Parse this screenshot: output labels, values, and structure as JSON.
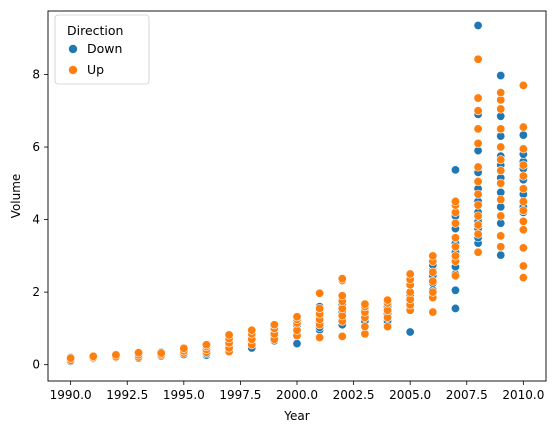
{
  "chart_data": {
    "type": "scatter",
    "title": "",
    "xlabel": "Year",
    "ylabel": "Volume",
    "xlim": [
      1989.0,
      2011.0
    ],
    "ylim": [
      -0.45,
      9.75
    ],
    "x_ticks": [
      1990.0,
      1992.5,
      1995.0,
      1997.5,
      2000.0,
      2002.5,
      2005.0,
      2007.5,
      2010.0
    ],
    "x_tick_labels": [
      "1990.0",
      "1992.5",
      "1995.0",
      "1997.5",
      "2000.0",
      "2002.5",
      "2005.0",
      "2007.5",
      "2010.0"
    ],
    "y_ticks": [
      0,
      2,
      4,
      6,
      8
    ],
    "y_tick_labels": [
      "0",
      "2",
      "4",
      "6",
      "8"
    ],
    "grid": false,
    "legend": {
      "title": "Direction",
      "placement": "top-left",
      "entries": [
        "Down",
        "Up"
      ]
    },
    "series": [
      {
        "name": "Down",
        "color": "#1f77b4",
        "points": [
          [
            1990,
            0.09
          ],
          [
            1990,
            0.14
          ],
          [
            1990,
            0.2
          ],
          [
            1991,
            0.17
          ],
          [
            1991,
            0.2
          ],
          [
            1992,
            0.2
          ],
          [
            1992,
            0.24
          ],
          [
            1992,
            0.28
          ],
          [
            1993,
            0.18
          ],
          [
            1993,
            0.24
          ],
          [
            1993,
            0.3
          ],
          [
            1994,
            0.24
          ],
          [
            1994,
            0.29
          ],
          [
            1994,
            0.34
          ],
          [
            1995,
            0.28
          ],
          [
            1995,
            0.35
          ],
          [
            1995,
            0.42
          ],
          [
            1996,
            0.26
          ],
          [
            1996,
            0.3
          ],
          [
            1996,
            0.38
          ],
          [
            1996,
            0.45
          ],
          [
            1997,
            0.4
          ],
          [
            1997,
            0.52
          ],
          [
            1997,
            0.66
          ],
          [
            1998,
            0.46
          ],
          [
            1998,
            0.62
          ],
          [
            1998,
            0.78
          ],
          [
            1998,
            0.88
          ],
          [
            1999,
            0.66
          ],
          [
            1999,
            0.8
          ],
          [
            1999,
            0.92
          ],
          [
            1999,
            1.02
          ],
          [
            2000,
            0.58
          ],
          [
            2000,
            0.85
          ],
          [
            2000,
            1.0
          ],
          [
            2000,
            1.08
          ],
          [
            2000,
            1.2
          ],
          [
            2001,
            0.96
          ],
          [
            2001,
            1.03
          ],
          [
            2001,
            1.15
          ],
          [
            2001,
            1.3
          ],
          [
            2001,
            1.5
          ],
          [
            2001,
            1.6
          ],
          [
            2002,
            1.1
          ],
          [
            2002,
            1.25
          ],
          [
            2002,
            1.45
          ],
          [
            2002,
            1.65
          ],
          [
            2002,
            1.82
          ],
          [
            2003,
            1.05
          ],
          [
            2003,
            1.2
          ],
          [
            2003,
            1.35
          ],
          [
            2003,
            1.5
          ],
          [
            2004,
            1.1
          ],
          [
            2004,
            1.2
          ],
          [
            2004,
            1.4
          ],
          [
            2004,
            1.6
          ],
          [
            2005,
            0.9
          ],
          [
            2005,
            1.55
          ],
          [
            2005,
            1.7
          ],
          [
            2005,
            1.82
          ],
          [
            2005,
            1.92
          ],
          [
            2006,
            1.9
          ],
          [
            2006,
            2.05
          ],
          [
            2006,
            2.25
          ],
          [
            2006,
            2.45
          ],
          [
            2006,
            2.6
          ],
          [
            2006,
            2.75
          ],
          [
            2007,
            1.55
          ],
          [
            2007,
            2.05
          ],
          [
            2007,
            2.5
          ],
          [
            2007,
            2.7
          ],
          [
            2007,
            2.9
          ],
          [
            2007,
            3.1
          ],
          [
            2007,
            3.35
          ],
          [
            2007,
            3.75
          ],
          [
            2007,
            4.1
          ],
          [
            2007,
            5.37
          ],
          [
            2008,
            3.35
          ],
          [
            2008,
            3.5
          ],
          [
            2008,
            3.75
          ],
          [
            2008,
            3.95
          ],
          [
            2008,
            4.2
          ],
          [
            2008,
            4.5
          ],
          [
            2008,
            4.85
          ],
          [
            2008,
            5.3
          ],
          [
            2008,
            5.9
          ],
          [
            2008,
            6.9
          ],
          [
            2008,
            9.35
          ],
          [
            2009,
            3.02
          ],
          [
            2009,
            3.9
          ],
          [
            2009,
            4.35
          ],
          [
            2009,
            4.75
          ],
          [
            2009,
            5.15
          ],
          [
            2009,
            5.5
          ],
          [
            2009,
            5.75
          ],
          [
            2009,
            6.3
          ],
          [
            2009,
            6.85
          ],
          [
            2009,
            7.97
          ],
          [
            2010,
            3.95
          ],
          [
            2010,
            4.2
          ],
          [
            2010,
            4.35
          ],
          [
            2010,
            4.7
          ],
          [
            2010,
            5.1
          ],
          [
            2010,
            5.4
          ],
          [
            2010,
            5.6
          ],
          [
            2010,
            5.8
          ],
          [
            2010,
            6.33
          ]
        ]
      },
      {
        "name": "Up",
        "color": "#ff7f0e",
        "points": [
          [
            1990,
            0.12
          ],
          [
            1990,
            0.18
          ],
          [
            1991,
            0.19
          ],
          [
            1991,
            0.23
          ],
          [
            1992,
            0.22
          ],
          [
            1992,
            0.27
          ],
          [
            1993,
            0.21
          ],
          [
            1993,
            0.27
          ],
          [
            1993,
            0.33
          ],
          [
            1994,
            0.27
          ],
          [
            1994,
            0.32
          ],
          [
            1995,
            0.32
          ],
          [
            1995,
            0.38
          ],
          [
            1995,
            0.45
          ],
          [
            1996,
            0.34
          ],
          [
            1996,
            0.42
          ],
          [
            1996,
            0.5
          ],
          [
            1996,
            0.55
          ],
          [
            1997,
            0.36
          ],
          [
            1997,
            0.46
          ],
          [
            1997,
            0.6
          ],
          [
            1997,
            0.72
          ],
          [
            1997,
            0.82
          ],
          [
            1998,
            0.55
          ],
          [
            1998,
            0.7
          ],
          [
            1998,
            0.85
          ],
          [
            1998,
            0.95
          ],
          [
            1999,
            0.7
          ],
          [
            1999,
            0.85
          ],
          [
            1999,
            1.0
          ],
          [
            1999,
            1.1
          ],
          [
            2000,
            0.8
          ],
          [
            2000,
            0.95
          ],
          [
            2000,
            1.15
          ],
          [
            2000,
            1.25
          ],
          [
            2000,
            1.32
          ],
          [
            2001,
            0.75
          ],
          [
            2001,
            1.1
          ],
          [
            2001,
            1.25
          ],
          [
            2001,
            1.4
          ],
          [
            2001,
            1.55
          ],
          [
            2001,
            1.97
          ],
          [
            2002,
            0.78
          ],
          [
            2002,
            1.2
          ],
          [
            2002,
            1.35
          ],
          [
            2002,
            1.55
          ],
          [
            2002,
            1.75
          ],
          [
            2002,
            1.9
          ],
          [
            2002,
            2.32
          ],
          [
            2002,
            2.37
          ],
          [
            2003,
            0.85
          ],
          [
            2003,
            1.05
          ],
          [
            2003,
            1.3
          ],
          [
            2003,
            1.45
          ],
          [
            2003,
            1.6
          ],
          [
            2003,
            1.67
          ],
          [
            2004,
            1.05
          ],
          [
            2004,
            1.3
          ],
          [
            2004,
            1.5
          ],
          [
            2004,
            1.7
          ],
          [
            2004,
            1.78
          ],
          [
            2005,
            1.5
          ],
          [
            2005,
            1.65
          ],
          [
            2005,
            1.8
          ],
          [
            2005,
            2.0
          ],
          [
            2005,
            2.2
          ],
          [
            2005,
            2.35
          ],
          [
            2005,
            2.5
          ],
          [
            2006,
            1.45
          ],
          [
            2006,
            1.85
          ],
          [
            2006,
            2.0
          ],
          [
            2006,
            2.3
          ],
          [
            2006,
            2.55
          ],
          [
            2006,
            2.85
          ],
          [
            2006,
            3.0
          ],
          [
            2007,
            2.45
          ],
          [
            2007,
            2.85
          ],
          [
            2007,
            3.0
          ],
          [
            2007,
            3.25
          ],
          [
            2007,
            3.5
          ],
          [
            2007,
            3.9
          ],
          [
            2007,
            4.2
          ],
          [
            2007,
            4.4
          ],
          [
            2007,
            4.5
          ],
          [
            2008,
            3.1
          ],
          [
            2008,
            3.6
          ],
          [
            2008,
            3.85
          ],
          [
            2008,
            4.1
          ],
          [
            2008,
            4.4
          ],
          [
            2008,
            4.7
          ],
          [
            2008,
            5.05
          ],
          [
            2008,
            5.45
          ],
          [
            2008,
            6.1
          ],
          [
            2008,
            6.5
          ],
          [
            2008,
            7.0
          ],
          [
            2008,
            7.35
          ],
          [
            2008,
            8.42
          ],
          [
            2009,
            3.25
          ],
          [
            2009,
            3.55
          ],
          [
            2009,
            4.1
          ],
          [
            2009,
            4.55
          ],
          [
            2009,
            5.0
          ],
          [
            2009,
            5.35
          ],
          [
            2009,
            5.65
          ],
          [
            2009,
            6.0
          ],
          [
            2009,
            6.5
          ],
          [
            2009,
            7.05
          ],
          [
            2009,
            7.3
          ],
          [
            2009,
            7.5
          ],
          [
            2010,
            2.4
          ],
          [
            2010,
            2.72
          ],
          [
            2010,
            3.22
          ],
          [
            2010,
            3.72
          ],
          [
            2010,
            3.95
          ],
          [
            2010,
            4.25
          ],
          [
            2010,
            4.5
          ],
          [
            2010,
            4.85
          ],
          [
            2010,
            5.2
          ],
          [
            2010,
            5.5
          ],
          [
            2010,
            5.95
          ],
          [
            2010,
            6.55
          ],
          [
            2010,
            7.7
          ]
        ]
      }
    ]
  }
}
